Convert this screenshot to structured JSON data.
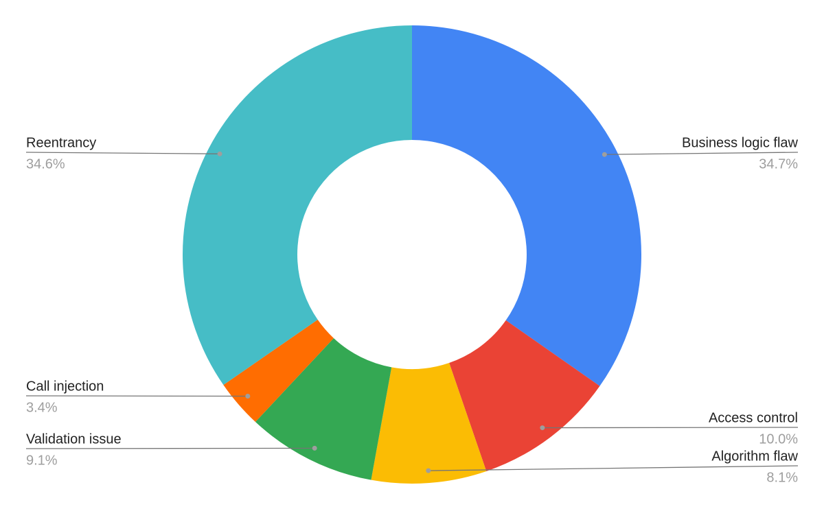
{
  "chart_data": {
    "type": "donut",
    "categories": [
      "Business logic flaw",
      "Access control",
      "Algorithm flaw",
      "Validation issue",
      "Call injection",
      "Reentrancy"
    ],
    "values": [
      34.7,
      10,
      8.1,
      9.1,
      3.4,
      34.6
    ],
    "value_labels": [
      "34.7%",
      "10.0%",
      "8.1%",
      "9.1%",
      "3.4%",
      "34.6%"
    ],
    "colors": [
      "#4285f4",
      "#ea4335",
      "#fbbc04",
      "#34a853",
      "#ff6d01",
      "#46bdc6"
    ]
  }
}
